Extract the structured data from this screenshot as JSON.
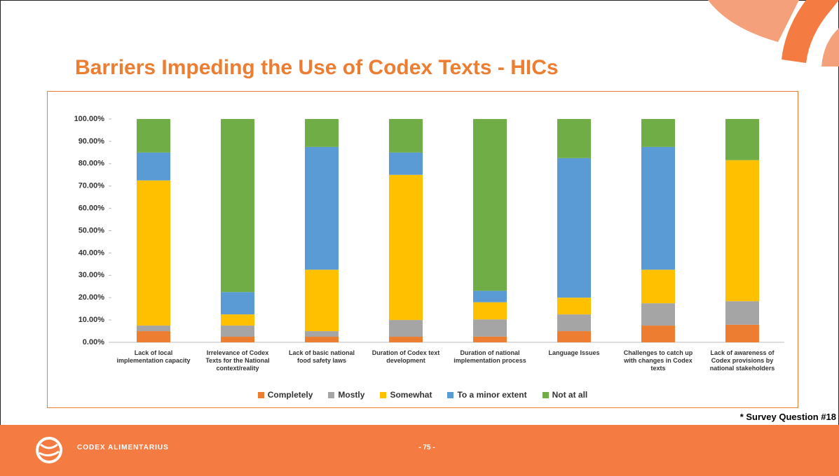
{
  "header": {
    "title": "Barriers Impeding the Use of Codex Texts - HICs"
  },
  "chart_data": {
    "type": "stacked_bar",
    "categories": [
      "Lack of local implementation capacity",
      "Irrelevance of Codex Texts for the National context/reality",
      "Lack of basic national food safety laws",
      "Duration of Codex text development",
      "Duration of national implementation process",
      "Language Issues",
      "Challenges to catch up with changes in Codex texts",
      "Lack of awareness of Codex provisions by national stakeholders"
    ],
    "series": [
      {
        "name": "Completely",
        "color": "#ed7d31",
        "values": [
          5,
          2.5,
          2.5,
          2.5,
          2.56,
          5,
          7.5,
          7.89
        ]
      },
      {
        "name": "Mostly",
        "color": "#a5a5a5",
        "values": [
          2.5,
          5,
          2.5,
          7.5,
          7.69,
          7.5,
          10,
          10.53
        ]
      },
      {
        "name": "Somewhat",
        "color": "#ffc000",
        "values": [
          65,
          5,
          27.5,
          65,
          7.69,
          7.5,
          15,
          63.16
        ]
      },
      {
        "name": "To a minor extent",
        "color": "#5b9bd5",
        "values": [
          12.5,
          10,
          55,
          10,
          5.13,
          62.5,
          55,
          0
        ]
      },
      {
        "name": "Not at all",
        "color": "#70ad47",
        "values": [
          15,
          77.5,
          12.5,
          15,
          76.92,
          17.5,
          12.5,
          18.42
        ]
      }
    ],
    "ylim": [
      0,
      100
    ],
    "yticks": [
      {
        "value": 0,
        "label": "0.00%"
      },
      {
        "value": 10,
        "label": "10.00%"
      },
      {
        "value": 20,
        "label": "20.00%"
      },
      {
        "value": 30,
        "label": "30.00%"
      },
      {
        "value": 40,
        "label": "40.00%"
      },
      {
        "value": 50,
        "label": "50.00%"
      },
      {
        "value": 60,
        "label": "60.00%"
      },
      {
        "value": 70,
        "label": "70.00%"
      },
      {
        "value": 80,
        "label": "80.00%"
      },
      {
        "value": 90,
        "label": "90.00%"
      },
      {
        "value": 100,
        "label": "100.00%"
      }
    ],
    "legend": "bottom"
  },
  "note": "* Survey Question #18",
  "footer": {
    "brand": "CODEX ALIMENTARIUS",
    "page": "- 75 -"
  }
}
